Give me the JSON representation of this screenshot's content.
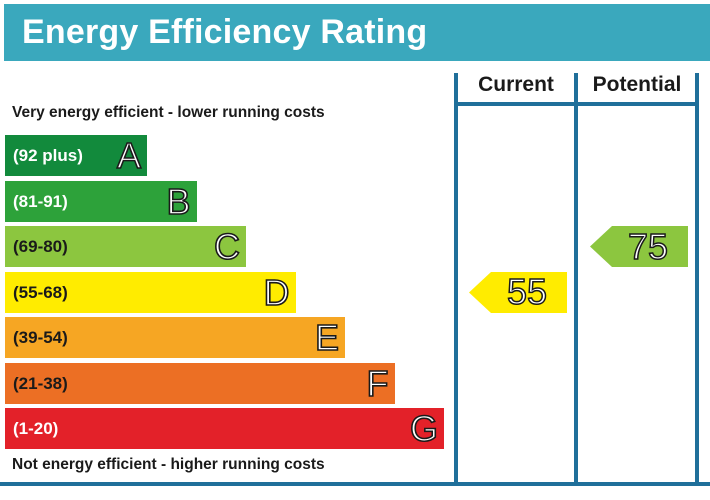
{
  "header": {
    "title": "Energy Efficiency Rating"
  },
  "notes": {
    "top": "Very energy efficient - lower running costs",
    "bottom": "Not energy efficient - higher running costs"
  },
  "columns": {
    "current": "Current",
    "potential": "Potential"
  },
  "colors": {
    "header": "#3aa8bd",
    "frame": "#1f6f9a",
    "A": "#128a3c",
    "B": "#2da23a",
    "C": "#8cc63f",
    "D": "#ffec00",
    "E": "#f6a623",
    "F": "#ec6f24",
    "G": "#e32129"
  },
  "chart_data": {
    "type": "bar",
    "categories": [
      "A",
      "B",
      "C",
      "D",
      "E",
      "F",
      "G"
    ],
    "ranges": [
      "(92 plus)",
      "(81-91)",
      "(69-80)",
      "(55-68)",
      "(39-54)",
      "(21-38)",
      "(1-20)"
    ],
    "values": [
      1,
      2,
      3,
      4,
      5,
      6,
      7
    ],
    "current": {
      "value": "55",
      "band": "D"
    },
    "potential": {
      "value": "75",
      "band": "C"
    }
  }
}
